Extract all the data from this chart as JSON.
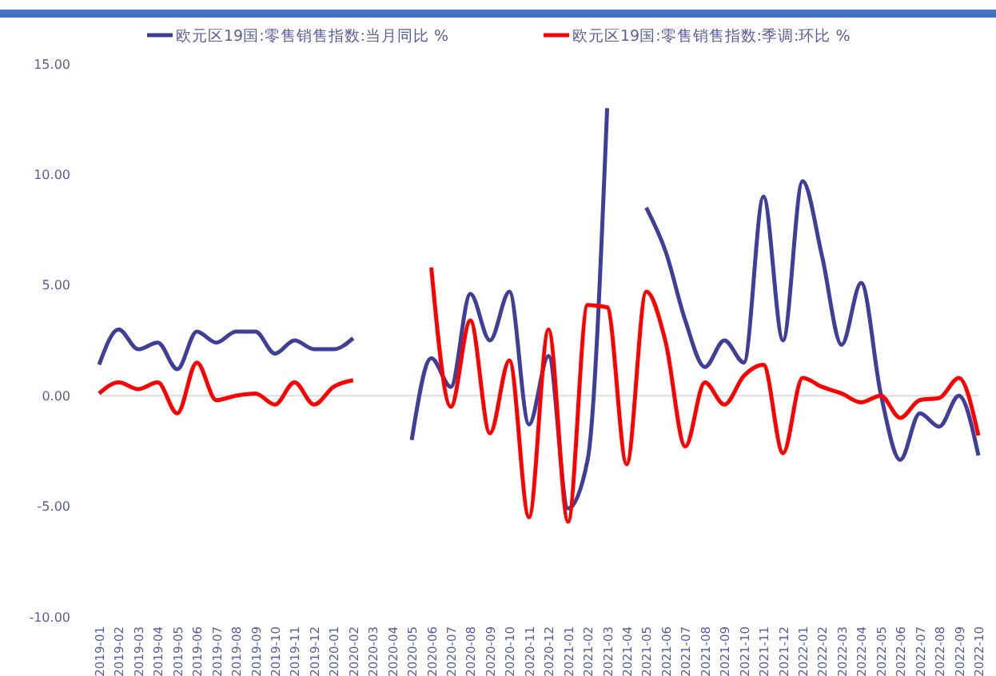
{
  "chart_data": {
    "type": "line",
    "categories": [
      "2019-01",
      "2019-02",
      "2019-03",
      "2019-04",
      "2019-05",
      "2019-06",
      "2019-07",
      "2019-08",
      "2019-09",
      "2019-10",
      "2019-11",
      "2019-12",
      "2020-01",
      "2020-02",
      "2020-03",
      "2020-04",
      "2020-05",
      "2020-06",
      "2020-07",
      "2020-08",
      "2020-09",
      "2020-10",
      "2020-11",
      "2020-12",
      "2021-01",
      "2021-02",
      "2021-03",
      "2021-04",
      "2021-05",
      "2021-06",
      "2021-07",
      "2021-08",
      "2021-09",
      "2021-10",
      "2021-11",
      "2021-12",
      "2022-01",
      "2022-02",
      "2022-03",
      "2022-04",
      "2022-05",
      "2022-06",
      "2022-07",
      "2022-08",
      "2022-09",
      "2022-10"
    ],
    "series": [
      {
        "name": "欧元区19国:零售销售指数:当月同比 %",
        "color": "#3f3f9a",
        "values": [
          1.4,
          3.0,
          2.1,
          2.4,
          1.2,
          2.9,
          2.4,
          2.9,
          2.9,
          1.9,
          2.5,
          2.1,
          2.1,
          2.6,
          null,
          null,
          -2.0,
          1.7,
          0.4,
          4.6,
          2.5,
          4.7,
          -1.3,
          1.8,
          -5.1,
          -2.9,
          13.0,
          null,
          8.5,
          6.5,
          3.4,
          1.3,
          2.5,
          1.5,
          9.0,
          2.5,
          9.7,
          6.3,
          2.3,
          5.1,
          0.1,
          -2.9,
          -0.8,
          -1.4,
          0.0,
          -2.7
        ]
      },
      {
        "name": "欧元区19国:零售销售指数:季调:环比 %",
        "color": "#ff0000",
        "values": [
          0.1,
          0.6,
          0.3,
          0.6,
          -0.8,
          1.5,
          -0.2,
          0.0,
          0.1,
          -0.4,
          0.6,
          -0.4,
          0.4,
          0.7,
          null,
          null,
          null,
          5.8,
          -0.5,
          3.4,
          -1.7,
          1.6,
          -5.5,
          3.0,
          -5.7,
          4.1,
          4.0,
          -3.1,
          4.7,
          2.4,
          -2.3,
          0.6,
          -0.4,
          0.9,
          1.4,
          -2.6,
          0.8,
          0.4,
          0.1,
          -0.3,
          0.0,
          -1.0,
          -0.2,
          -0.1,
          0.8,
          -1.8
        ]
      }
    ],
    "ylim": [
      -10,
      15
    ],
    "yticks": [
      {
        "value": -10,
        "label": "-10.00"
      },
      {
        "value": -5,
        "label": "-5.00"
      },
      {
        "value": 0,
        "label": "0.00"
      },
      {
        "value": 5,
        "label": "5.00"
      },
      {
        "value": 10,
        "label": "10.00"
      },
      {
        "value": 15,
        "label": "15.00"
      }
    ],
    "ref_lines": [
      {
        "axis": "y",
        "value": 0,
        "color": "#dcdcdc"
      }
    ],
    "grid": false,
    "legend": "top",
    "marker": "none",
    "line_style": "solid"
  }
}
